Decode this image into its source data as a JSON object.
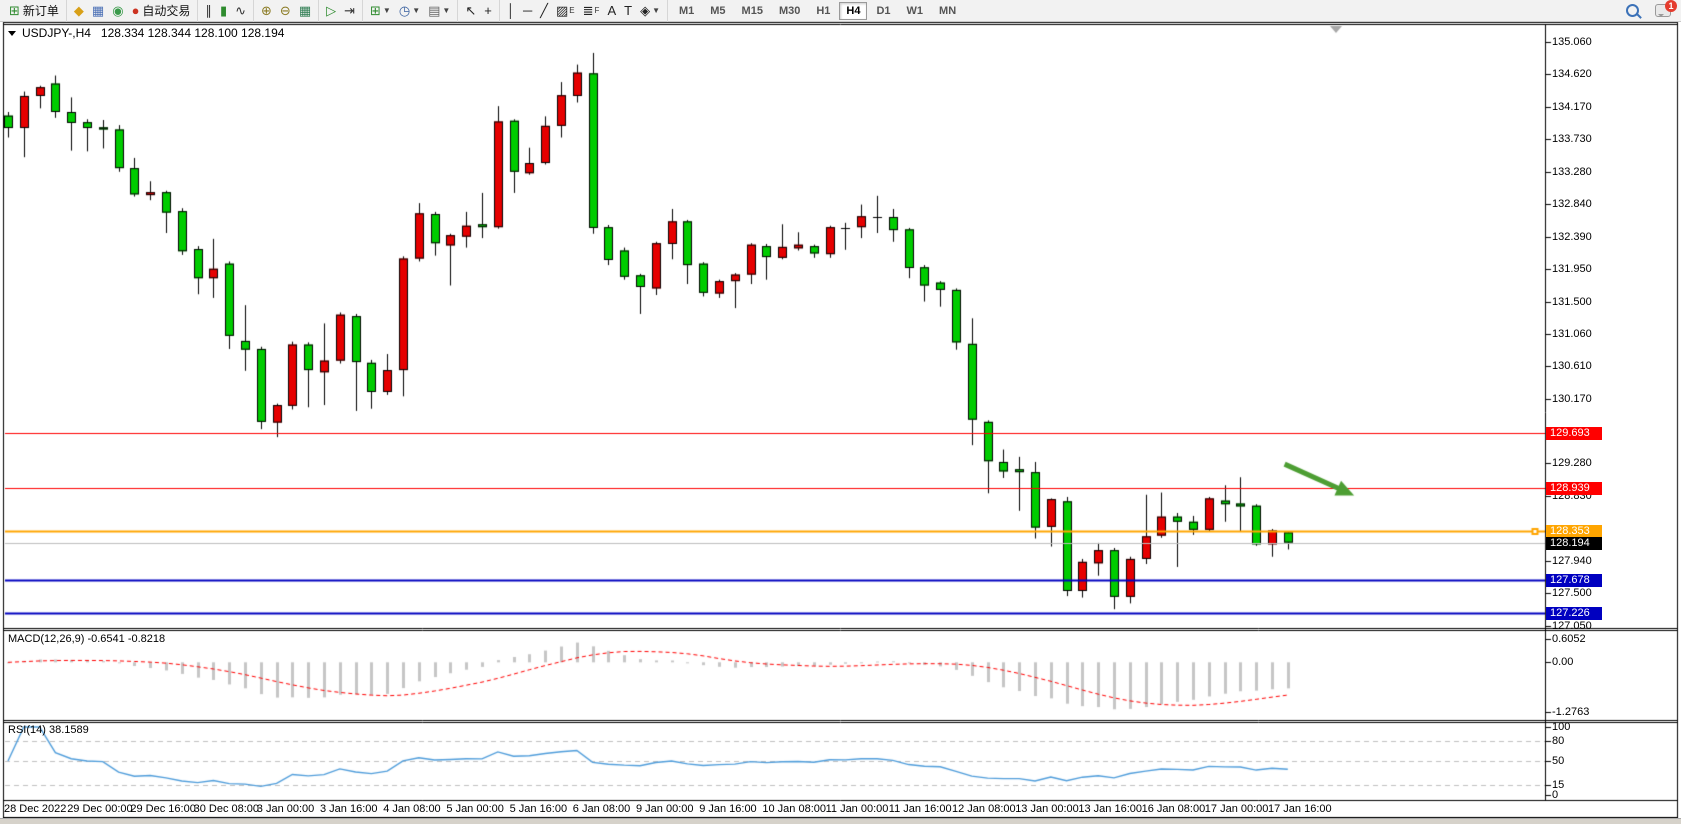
{
  "toolbar": {
    "groups": [
      {
        "items": [
          {
            "name": "new-order-button",
            "glyph": "⊞",
            "color": "#2e8b2e",
            "label": "新订单"
          }
        ]
      },
      {
        "items": [
          {
            "name": "market-watch-button",
            "glyph": "◆",
            "color": "#d8a018"
          },
          {
            "name": "data-window-button",
            "glyph": "▦",
            "color": "#4a6fb5"
          },
          {
            "name": "expert-advisors-button",
            "glyph": "◉",
            "color": "#3a9a4a"
          },
          {
            "name": "auto-trading-button",
            "glyph": "●",
            "color": "#cc3322",
            "label": "自动交易"
          }
        ]
      },
      {
        "items": [
          {
            "name": "bar-chart-button",
            "glyph": "∥",
            "color": "#333333"
          },
          {
            "name": "candlestick-chart-button",
            "glyph": "▮",
            "color": "#2e8b2e"
          },
          {
            "name": "line-chart-button",
            "glyph": "∿",
            "color": "#333333"
          }
        ]
      },
      {
        "items": [
          {
            "name": "zoom-in-button",
            "glyph": "⊕",
            "color": "#8a7a22"
          },
          {
            "name": "zoom-out-button",
            "glyph": "⊖",
            "color": "#8a7a22"
          },
          {
            "name": "tile-windows-button",
            "glyph": "▦",
            "color": "#2e7d52"
          }
        ]
      },
      {
        "items": [
          {
            "name": "auto-scroll-button",
            "glyph": "▷",
            "color": "#2e8b2e"
          },
          {
            "name": "chart-shift-button",
            "glyph": "⇥",
            "color": "#333333"
          }
        ]
      },
      {
        "items": [
          {
            "name": "indicators-button",
            "glyph": "⊞",
            "color": "#2e8b2e",
            "caret": true
          },
          {
            "name": "periods-button",
            "glyph": "◷",
            "color": "#365e9e",
            "caret": true
          },
          {
            "name": "templates-button",
            "glyph": "▤",
            "color": "#666666",
            "caret": true
          }
        ]
      },
      {
        "items": [
          {
            "name": "cursor-button",
            "glyph": "↖",
            "color": "#222222"
          },
          {
            "name": "crosshair-button",
            "glyph": "+",
            "color": "#222222"
          }
        ]
      },
      {
        "items": [
          {
            "name": "vertical-line-button",
            "glyph": "│",
            "color": "#222222"
          },
          {
            "name": "horizontal-line-button",
            "glyph": "─",
            "color": "#222222"
          },
          {
            "name": "trendline-button",
            "glyph": "╱",
            "color": "#222222"
          },
          {
            "name": "channel-button",
            "glyph": "▨",
            "color": "#222222",
            "sub": "E"
          },
          {
            "name": "fibonacci-button",
            "glyph": "≣",
            "color": "#222222",
            "sub": "F"
          },
          {
            "name": "text-button",
            "glyph": "A",
            "color": "#222222"
          },
          {
            "name": "text-label-button",
            "glyph": "T",
            "color": "#222222"
          },
          {
            "name": "arrows-button",
            "glyph": "◈",
            "color": "#222222",
            "caret": true
          }
        ]
      }
    ],
    "timeframes": {
      "items": [
        "M1",
        "M5",
        "M15",
        "M30",
        "H1",
        "H4",
        "D1",
        "W1",
        "MN"
      ],
      "active": "H4"
    },
    "notification_badge": "1"
  },
  "chart_data": {
    "type": "candlestick",
    "symbol_period_display": "USDJPY-,H4",
    "quote_display": "128.334 128.344 128.100 128.194",
    "ohlc_display": {
      "open": "128.334",
      "high": "128.344",
      "low": "128.100",
      "close": "128.194"
    },
    "ylim": [
      127.05,
      135.06
    ],
    "y_axis_ticks": [
      "135.060",
      "134.620",
      "134.170",
      "133.730",
      "133.280",
      "132.840",
      "132.390",
      "131.950",
      "131.500",
      "131.060",
      "130.610",
      "130.170",
      "129.280",
      "128.830",
      "127.940",
      "127.500",
      "127.050"
    ],
    "x_labels": [
      "28 Dec 2022",
      "29 Dec 00:00",
      "29 Dec 16:00",
      "30 Dec 08:00",
      "3 Jan 00:00",
      "3 Jan 16:00",
      "4 Jan 08:00",
      "5 Jan 00:00",
      "5 Jan 16:00",
      "6 Jan 08:00",
      "9 Jan 00:00",
      "9 Jan 16:00",
      "10 Jan 08:00",
      "11 Jan 00:00",
      "11 Jan 16:00",
      "12 Jan 08:00",
      "13 Jan 00:00",
      "13 Jan 16:00",
      "16 Jan 08:00",
      "17 Jan 00:00",
      "17 Jan 16:00"
    ],
    "x_label_step": 4,
    "colors": {
      "bull": "#e60000",
      "bear": "#00cc00",
      "outline": "#000000",
      "background": "#ffffff"
    },
    "candles": [
      [
        134.05,
        134.1,
        133.75,
        133.88
      ],
      [
        133.88,
        134.38,
        133.48,
        134.32
      ],
      [
        134.32,
        134.46,
        134.15,
        134.44
      ],
      [
        134.49,
        134.6,
        134.02,
        134.1
      ],
      [
        134.1,
        134.3,
        133.57,
        133.95
      ],
      [
        133.96,
        134.0,
        133.56,
        133.88
      ],
      [
        133.89,
        133.99,
        133.6,
        133.86
      ],
      [
        133.86,
        133.92,
        133.28,
        133.33
      ],
      [
        133.33,
        133.47,
        132.94,
        132.97
      ],
      [
        132.96,
        133.15,
        132.89,
        133.0
      ],
      [
        133.0,
        133.02,
        132.44,
        132.72
      ],
      [
        132.74,
        132.78,
        132.14,
        132.19
      ],
      [
        132.22,
        132.26,
        131.6,
        131.82
      ],
      [
        131.82,
        132.36,
        131.55,
        131.95
      ],
      [
        132.02,
        132.05,
        130.85,
        131.03
      ],
      [
        130.96,
        131.45,
        130.55,
        130.84
      ],
      [
        130.85,
        130.88,
        129.75,
        129.85
      ],
      [
        129.84,
        130.1,
        129.64,
        130.08
      ],
      [
        130.07,
        130.95,
        130.02,
        130.91
      ],
      [
        130.91,
        130.94,
        130.05,
        130.56
      ],
      [
        130.53,
        131.2,
        130.08,
        130.69
      ],
      [
        130.69,
        131.35,
        130.65,
        131.32
      ],
      [
        131.3,
        131.33,
        130.0,
        130.67
      ],
      [
        130.66,
        130.7,
        130.03,
        130.26
      ],
      [
        130.26,
        130.78,
        130.22,
        130.56
      ],
      [
        130.56,
        132.12,
        130.2,
        132.09
      ],
      [
        132.09,
        132.85,
        132.05,
        132.71
      ],
      [
        132.7,
        132.73,
        132.13,
        132.3
      ],
      [
        132.27,
        132.43,
        131.72,
        132.41
      ],
      [
        132.39,
        132.73,
        132.24,
        132.54
      ],
      [
        132.56,
        132.99,
        132.37,
        132.52
      ],
      [
        132.52,
        134.18,
        132.5,
        133.97
      ],
      [
        133.98,
        134.0,
        132.99,
        133.28
      ],
      [
        133.26,
        133.61,
        133.24,
        133.4
      ],
      [
        133.4,
        134.04,
        133.38,
        133.91
      ],
      [
        133.91,
        134.51,
        133.75,
        134.33
      ],
      [
        134.32,
        134.75,
        134.23,
        134.64
      ],
      [
        134.63,
        134.91,
        132.43,
        132.51
      ],
      [
        132.52,
        132.55,
        132.0,
        132.07
      ],
      [
        132.2,
        132.24,
        131.8,
        131.84
      ],
      [
        131.86,
        131.88,
        131.33,
        131.7
      ],
      [
        131.68,
        132.32,
        131.59,
        132.3
      ],
      [
        132.29,
        132.77,
        132.08,
        132.6
      ],
      [
        132.6,
        132.62,
        131.74,
        132.0
      ],
      [
        132.02,
        132.04,
        131.57,
        131.62
      ],
      [
        131.61,
        131.8,
        131.55,
        131.78
      ],
      [
        131.78,
        131.89,
        131.41,
        131.87
      ],
      [
        131.87,
        132.3,
        131.74,
        132.28
      ],
      [
        132.26,
        132.29,
        131.8,
        132.11
      ],
      [
        132.1,
        132.56,
        132.08,
        132.25
      ],
      [
        132.23,
        132.45,
        132.2,
        132.28
      ],
      [
        132.26,
        132.28,
        132.1,
        132.16
      ],
      [
        132.15,
        132.54,
        132.1,
        132.52
      ],
      [
        132.53,
        132.58,
        132.21,
        132.51
      ],
      [
        132.52,
        132.83,
        132.37,
        132.67
      ],
      [
        132.66,
        132.95,
        132.44,
        132.66
      ],
      [
        132.66,
        132.77,
        132.32,
        132.48
      ],
      [
        132.49,
        132.51,
        131.82,
        131.96
      ],
      [
        131.97,
        132.0,
        131.5,
        131.72
      ],
      [
        131.76,
        131.78,
        131.43,
        131.66
      ],
      [
        131.66,
        131.68,
        130.84,
        130.94
      ],
      [
        130.92,
        131.27,
        129.53,
        129.88
      ],
      [
        129.85,
        129.87,
        128.87,
        129.31
      ],
      [
        129.3,
        129.47,
        129.08,
        129.17
      ],
      [
        129.2,
        129.37,
        128.63,
        129.16
      ],
      [
        129.16,
        129.3,
        128.25,
        128.4
      ],
      [
        128.41,
        128.8,
        128.14,
        128.79
      ],
      [
        128.76,
        128.82,
        127.46,
        127.53
      ],
      [
        127.53,
        127.97,
        127.44,
        127.93
      ],
      [
        127.91,
        128.19,
        127.74,
        128.09
      ],
      [
        128.09,
        128.12,
        127.28,
        127.45
      ],
      [
        127.45,
        128.0,
        127.36,
        127.97
      ],
      [
        127.97,
        128.85,
        127.9,
        128.28
      ],
      [
        128.29,
        128.88,
        128.26,
        128.55
      ],
      [
        128.55,
        128.6,
        127.86,
        128.48
      ],
      [
        128.48,
        128.56,
        128.3,
        128.37
      ],
      [
        128.37,
        128.82,
        128.35,
        128.8
      ],
      [
        128.77,
        128.98,
        128.48,
        128.72
      ],
      [
        128.73,
        129.09,
        128.35,
        128.69
      ],
      [
        128.7,
        128.72,
        128.15,
        128.17
      ],
      [
        128.17,
        128.38,
        128.0,
        128.36
      ],
      [
        128.334,
        128.344,
        128.1,
        128.194
      ]
    ],
    "price_lines": [
      {
        "name": "resistance-line-1",
        "price": 129.693,
        "label": "129.693",
        "color": "#ff0000",
        "width": 1
      },
      {
        "name": "resistance-line-2",
        "price": 128.939,
        "label": "128.939",
        "color": "#ff0000",
        "width": 1
      },
      {
        "name": "pivot-line",
        "price": 128.353,
        "label": "128.353",
        "color": "#ffa500",
        "width": 2,
        "handle": true
      },
      {
        "name": "bid-price-line",
        "price": 128.194,
        "label": "128.194",
        "color": "#bebebe",
        "label_bg": "#000000",
        "width": 1
      },
      {
        "name": "support-line-1",
        "price": 127.678,
        "label": "127.678",
        "color": "#0000c0",
        "width": 2
      },
      {
        "name": "support-line-2",
        "price": 127.226,
        "label": "127.226",
        "color": "#0000c0",
        "width": 2
      }
    ],
    "annotation_arrow": {
      "from_index": 80.8,
      "from_price": 129.27,
      "to_index": 85.2,
      "to_price": 128.84,
      "color": "#4d9e33"
    },
    "indicators": {
      "macd": {
        "display": "MACD(12,26,9) -0.6541 -0.8218",
        "label": "MACD(12,26,9)",
        "main_value": "-0.6541",
        "signal_value": "-0.8218",
        "fast": 12,
        "slow": 26,
        "signal": 9,
        "axis_ticks": [
          "0.6052",
          "0.00",
          "-1.2763"
        ],
        "axis_tick_values": [
          0.6052,
          0.0,
          -1.2763
        ],
        "ylim": [
          -1.45,
          0.75
        ],
        "histogram_color": "#c6c6c6",
        "signal_color": "#ff0000"
      },
      "rsi": {
        "display": "RSI(14) 38.1589",
        "label": "RSI(14)",
        "value": "38.1589",
        "period": 14,
        "axis_ticks": [
          "100",
          "80",
          "50",
          "15",
          "0"
        ],
        "axis_tick_values": [
          100,
          80,
          50,
          15,
          0
        ],
        "levels": [
          80,
          50,
          15
        ],
        "ylim": [
          0,
          100
        ],
        "line_color": "#4f9ddb",
        "level_color": "#c0c0c0"
      }
    }
  }
}
